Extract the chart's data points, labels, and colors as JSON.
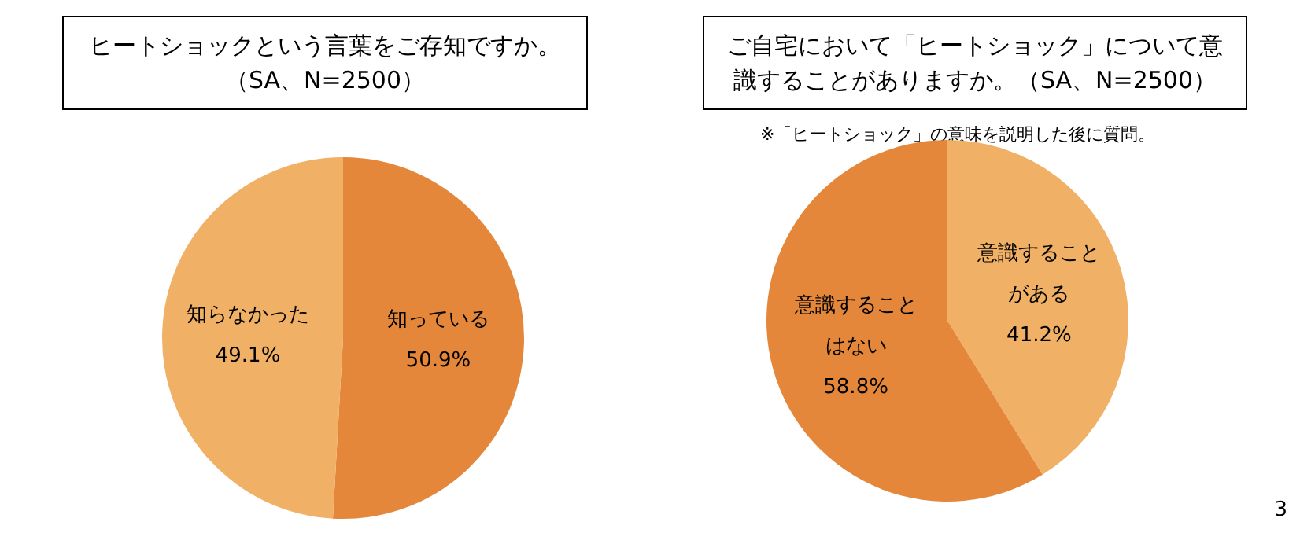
{
  "chart_data": [
    {
      "type": "pie",
      "title": "ヒートショックという言葉をご存知ですか。（SA、N=2500）",
      "categories": [
        "知っている",
        "知らなかった"
      ],
      "values": [
        50.9,
        49.1
      ],
      "colors": [
        "#e5873a",
        "#f0b066"
      ],
      "value_labels": [
        "50.9%",
        "49.1%"
      ],
      "legend": false
    },
    {
      "type": "pie",
      "title": "ご自宅において「ヒートショック」について意識することがありますか。（SA、N=2500）",
      "categories": [
        "意識することがある",
        "意識することはない"
      ],
      "values": [
        41.2,
        58.8
      ],
      "colors": [
        "#f0b066",
        "#e5873a"
      ],
      "value_labels": [
        "41.2%",
        "58.8%"
      ],
      "legend": false,
      "annotations": [
        "※「ヒートショック」の意味を説明した後に質問。",
        "3"
      ]
    }
  ]
}
